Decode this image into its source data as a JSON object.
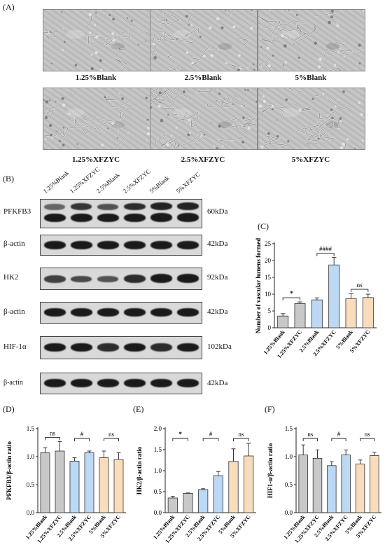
{
  "panels": {
    "a": "(A)",
    "b": "(B)",
    "c": "(C)",
    "d": "(D)",
    "e": "(E)",
    "f": "(F)"
  },
  "micrographs": [
    {
      "label": "1.25%Blank"
    },
    {
      "label": "2.5%Blank"
    },
    {
      "label": "5%Blank"
    },
    {
      "label": "1.25%XFZYC"
    },
    {
      "label": "2.5%XFZYC"
    },
    {
      "label": "5%XFZYC"
    }
  ],
  "lanes": [
    "1.25%Blank",
    "1.25%XFZYC",
    "2.5%Blank",
    "2.5%XFZYC",
    "5%Blank",
    "5%XFZYC"
  ],
  "blots": [
    {
      "protein": "PFKFB3",
      "kda": "60kDa"
    },
    {
      "protein": "β-actin",
      "kda": "42kDa"
    },
    {
      "protein": "HK2",
      "kda": "92kDa"
    },
    {
      "protein": "β-actin",
      "kda": "42kDa"
    },
    {
      "protein": "HIF-1α",
      "kda": "102kDa"
    },
    {
      "protein": "β-actin",
      "kda": "42kDa"
    }
  ],
  "colors": {
    "blank": "#c8c8c8",
    "xfzyc_low": "#c8c8c8",
    "pair2": "#bcd8f4",
    "pair3": "#f8dcbc"
  },
  "chart_data": [
    {
      "id": "C",
      "type": "bar",
      "categories": [
        "1.25%Blank",
        "1.25%XFZYC",
        "2.5%Blank",
        "2.5%XFZYC",
        "5%Blank",
        "5%XFZYC"
      ],
      "values": [
        3.5,
        7.2,
        8.3,
        18.7,
        8.7,
        9.0
      ],
      "errors": [
        0.7,
        0.5,
        0.6,
        2.2,
        1.5,
        1.0
      ],
      "ylabel": "Number of vascular lumens formed",
      "ylim": [
        0,
        25
      ],
      "yticks": [
        "0",
        "5",
        "10",
        "15",
        "20",
        "25"
      ],
      "annotations": [
        "*",
        "####",
        "ns"
      ]
    },
    {
      "id": "D",
      "type": "bar",
      "categories": [
        "1.25%Blank",
        "1.25%XFZYC",
        "2.5%Blank",
        "2.5%XFZYC",
        "5%Blank",
        "5%XFZYC"
      ],
      "values": [
        1.07,
        1.1,
        0.92,
        1.07,
        0.98,
        0.95
      ],
      "errors": [
        0.09,
        0.17,
        0.06,
        0.03,
        0.12,
        0.12
      ],
      "ylabel": "PFKFB3/β-actin ratio",
      "ylim": [
        0,
        1.5
      ],
      "yticks": [
        "0.0",
        "0.5",
        "1.0",
        "1.5"
      ],
      "annotations": [
        "ns",
        "#",
        "ns"
      ]
    },
    {
      "id": "E",
      "type": "bar",
      "categories": [
        "1.25%Blank",
        "1.25%XFZYC",
        "2.5%Blank",
        "2.5%XFZYC",
        "5%Blank",
        "5%XFZYC"
      ],
      "values": [
        0.35,
        0.46,
        0.55,
        0.88,
        1.22,
        1.35
      ],
      "errors": [
        0.04,
        0.01,
        0.02,
        0.1,
        0.3,
        0.3
      ],
      "ylabel": "HK2/β-actin ratio",
      "ylim": [
        0,
        2.0
      ],
      "yticks": [
        "0.0",
        "0.5",
        "1.0",
        "1.5",
        "2.0"
      ],
      "annotations": [
        "*",
        "#",
        "ns"
      ]
    },
    {
      "id": "F",
      "type": "bar",
      "categories": [
        "1.25%Blank",
        "1.25%XFZYC",
        "2.5%Blank",
        "2.5%XFZYC",
        "5%Blank",
        "5%XFZYC"
      ],
      "values": [
        1.03,
        0.97,
        0.84,
        1.03,
        0.87,
        1.02
      ],
      "errors": [
        0.18,
        0.15,
        0.07,
        0.09,
        0.07,
        0.06
      ],
      "ylabel": "HIF1-α/β-actin ratio",
      "ylim": [
        0,
        1.5
      ],
      "yticks": [
        "0.0",
        "0.5",
        "1.0",
        "1.5"
      ],
      "annotations": [
        "ns",
        "#",
        "ns"
      ]
    }
  ]
}
